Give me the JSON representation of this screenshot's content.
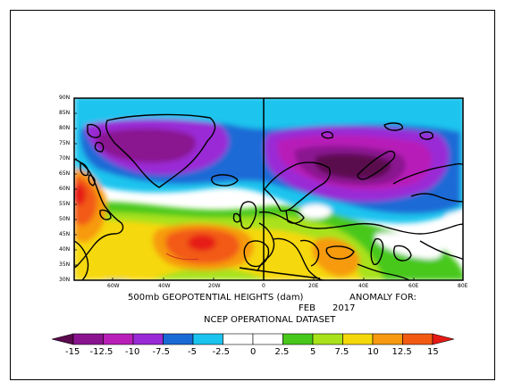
{
  "caption": {
    "line1_left": "500mb GEOPOTENTIAL HEIGHTS (dam)",
    "line1_right": "ANOMALY FOR:",
    "line2": "FEB      2017",
    "line3": "NCEP OPERATIONAL DATASET"
  },
  "axes": {
    "lat_labels": [
      "90N",
      "85N",
      "80N",
      "75N",
      "70N",
      "65N",
      "60N",
      "55N",
      "50N",
      "45N",
      "40N",
      "35N",
      "30N"
    ],
    "lon_labels": [
      "60W",
      "40W",
      "20W",
      "0",
      "20E",
      "40E",
      "60E",
      "80E"
    ]
  },
  "colorbar": {
    "labels": [
      "-15",
      "-12.5",
      "-10",
      "-7.5",
      "-5",
      "-2.5",
      "0",
      "2.5",
      "5",
      "7.5",
      "10",
      "12.5",
      "15"
    ],
    "colors": [
      "#5a0a4e",
      "#8a1490",
      "#b81fb8",
      "#9a2ad6",
      "#1a6ad6",
      "#1bc4ee",
      "#ffffff",
      "#ffffff",
      "#48c81a",
      "#a8e21a",
      "#f5d80a",
      "#f79a10",
      "#f25a12",
      "#e61a14"
    ]
  }
}
